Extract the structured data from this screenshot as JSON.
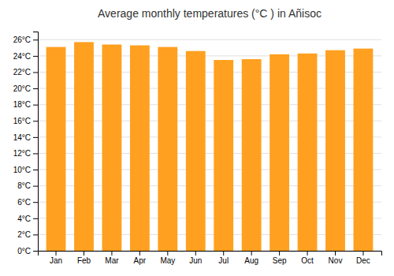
{
  "chart_data": {
    "type": "bar",
    "title": "Average monthly temperatures (°C ) in Añisoc",
    "categories": [
      "Jan",
      "Feb",
      "Mar",
      "Apr",
      "May",
      "Jun",
      "Jul",
      "Aug",
      "Sep",
      "Oct",
      "Nov",
      "Dec"
    ],
    "values": [
      25.1,
      25.7,
      25.4,
      25.3,
      25.1,
      24.6,
      23.5,
      23.6,
      24.2,
      24.3,
      24.7,
      24.9
    ],
    "color": "#FFA020",
    "ylim": [
      0,
      27
    ],
    "yticks": [
      {
        "value": 0,
        "label": "0°C"
      },
      {
        "value": 2,
        "label": "2°C"
      },
      {
        "value": 4,
        "label": "4°C"
      },
      {
        "value": 6,
        "label": "6°C"
      },
      {
        "value": 8,
        "label": "8°C"
      },
      {
        "value": 10,
        "label": "10°C"
      },
      {
        "value": 12,
        "label": "12°C"
      },
      {
        "value": 14,
        "label": "14°C"
      },
      {
        "value": 16,
        "label": "16°C"
      },
      {
        "value": 18,
        "label": "18°C"
      },
      {
        "value": 20,
        "label": "20°C"
      },
      {
        "value": 22,
        "label": "22°C"
      },
      {
        "value": 24,
        "label": "24°C"
      },
      {
        "value": 26,
        "label": "26°C"
      }
    ],
    "grid": true
  }
}
